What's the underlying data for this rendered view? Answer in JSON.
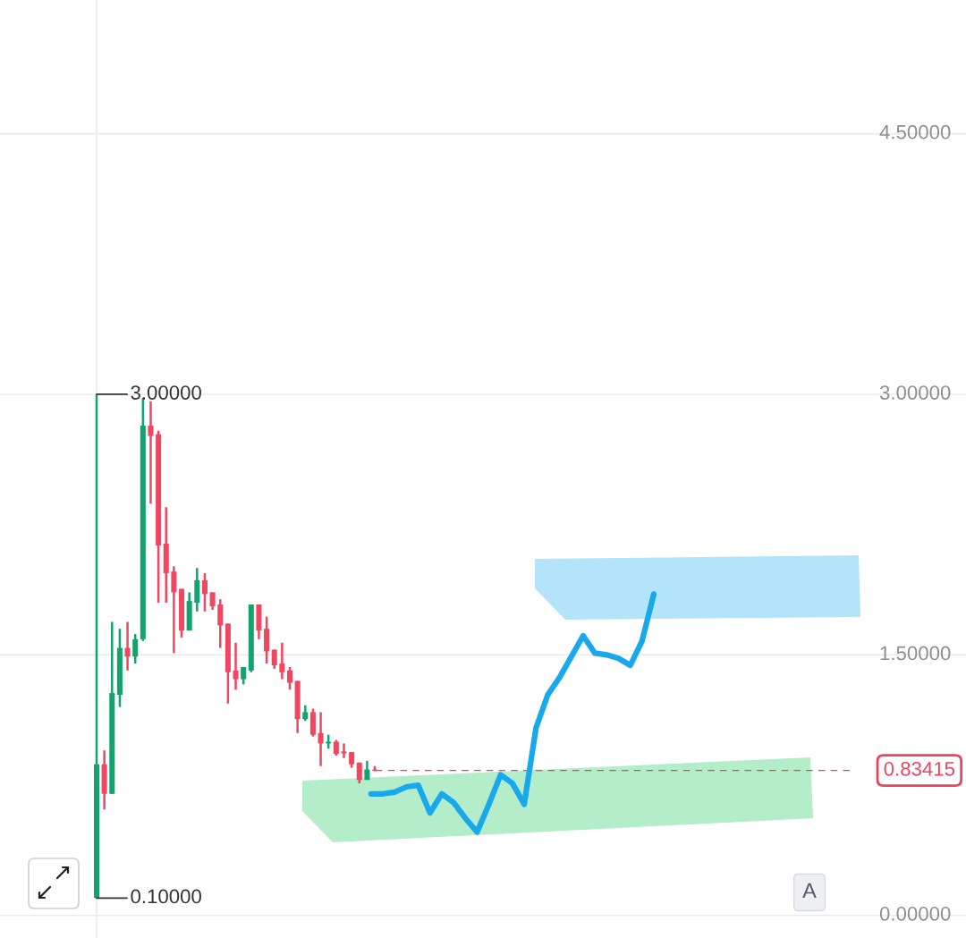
{
  "chart_data": [
    {
      "type": "candlestick",
      "categories": [
        null,
        null,
        null,
        null,
        null,
        null,
        null,
        null,
        null,
        null,
        null,
        null,
        null,
        null,
        null,
        null,
        null,
        null,
        null,
        null,
        null,
        null,
        null,
        null,
        null,
        null,
        null,
        null,
        null,
        null,
        null,
        null,
        null,
        null,
        null,
        null,
        null,
        null,
        null,
        null,
        null,
        null,
        null,
        null,
        null,
        null,
        null,
        null,
        null,
        null,
        null,
        null,
        null,
        null,
        null,
        null,
        null,
        null,
        null,
        null,
        null,
        null,
        null,
        null,
        null,
        null,
        null,
        null,
        null,
        null,
        null,
        null,
        null,
        null,
        null,
        null,
        null,
        null,
        null,
        null,
        null,
        null,
        null,
        null,
        null,
        null,
        null,
        null,
        null,
        null,
        null,
        null,
        null,
        null,
        null,
        null,
        null,
        null,
        null,
        null,
        null,
        null,
        null,
        null,
        null,
        null,
        null,
        null,
        null,
        null,
        null,
        null,
        null,
        null,
        null,
        null,
        null,
        null,
        null,
        null,
        null,
        null,
        null,
        null,
        null
      ],
      "ohlc": [
        null,
        null,
        null,
        null,
        null,
        null,
        null,
        null,
        null,
        null,
        null,
        null,
        [
          0.1,
          3.0,
          0.1,
          0.87
        ],
        [
          0.87,
          0.95,
          0.61,
          0.7
        ],
        [
          0.7,
          1.69,
          0.7,
          1.28
        ],
        [
          1.27,
          1.65,
          1.2,
          1.54
        ],
        [
          1.54,
          1.69,
          1.41,
          1.49
        ],
        [
          1.49,
          1.62,
          1.45,
          1.59
        ],
        [
          1.59,
          2.98,
          1.58,
          2.82
        ],
        [
          2.82,
          2.96,
          2.37,
          2.76
        ],
        [
          2.77,
          2.79,
          1.8,
          2.13
        ],
        [
          2.14,
          2.35,
          1.8,
          1.97
        ],
        [
          1.98,
          2.01,
          1.51,
          1.86
        ],
        [
          1.88,
          1.88,
          1.6,
          1.64
        ],
        [
          1.64,
          1.86,
          1.64,
          1.81
        ],
        [
          1.8,
          2.0,
          1.75,
          1.93
        ],
        [
          1.93,
          1.97,
          1.75,
          1.85
        ],
        [
          1.86,
          1.86,
          1.76,
          1.78
        ],
        [
          1.79,
          1.82,
          1.54,
          1.67
        ],
        [
          1.68,
          1.68,
          1.22,
          1.4
        ],
        [
          1.41,
          1.57,
          1.3,
          1.36
        ],
        [
          1.36,
          1.43,
          1.33,
          1.43
        ],
        [
          1.41,
          1.79,
          1.4,
          1.79
        ],
        [
          1.79,
          1.79,
          1.59,
          1.64
        ],
        [
          1.65,
          1.72,
          1.45,
          1.52
        ],
        [
          1.53,
          1.53,
          1.42,
          1.44
        ],
        [
          1.45,
          1.57,
          1.36,
          1.4
        ],
        [
          1.41,
          1.43,
          1.3,
          1.34
        ],
        [
          1.35,
          1.35,
          1.05,
          1.13
        ],
        [
          1.13,
          1.21,
          1.12,
          1.17
        ],
        [
          1.17,
          1.19,
          1.03,
          1.04
        ],
        [
          1.05,
          1.17,
          0.86,
          0.99
        ],
        [
          0.99,
          1.04,
          0.96,
          1.0
        ],
        [
          1.0,
          1.01,
          0.92,
          0.93
        ],
        [
          0.944,
          0.99,
          0.906,
          0.933
        ],
        [
          0.94,
          0.94,
          0.85,
          0.87
        ],
        [
          0.88,
          0.88,
          0.76,
          0.78
        ],
        [
          0.78,
          0.89,
          0.78,
          0.84
        ],
        [
          0.84,
          0.86,
          0.83,
          0.834
        ],
        null,
        null,
        null,
        null,
        null,
        null,
        null,
        null,
        null,
        null,
        null,
        null,
        null,
        null,
        null,
        null,
        null,
        null,
        null,
        null,
        null,
        null,
        null,
        null,
        null,
        null,
        null,
        null,
        null,
        null,
        null,
        null,
        null,
        null,
        null,
        null,
        null,
        null,
        null,
        null,
        null,
        null,
        null,
        null,
        null,
        null,
        null,
        null,
        null,
        null,
        null,
        null,
        null,
        null,
        null,
        null,
        null,
        null,
        null,
        null,
        null,
        null,
        null,
        null,
        null,
        null,
        null,
        null,
        null,
        null,
        null,
        null,
        null,
        null,
        null,
        null
      ],
      "colors": [
        null,
        null,
        null,
        null,
        null,
        null,
        null,
        null,
        null,
        null,
        null,
        null,
        "#13a36e",
        "#f0465f",
        "#13a36e",
        "#13a36e",
        "#f0465f",
        "#13a36e",
        "#13a36e",
        "#f0465f",
        "#f0465f",
        "#f0465f",
        "#f0465f",
        "#f0465f",
        "#13a36e",
        "#13a36e",
        "#f0465f",
        "#f0465f",
        "#f0465f",
        "#f0465f",
        "#f0465f",
        "#13a36e",
        "#13a36e",
        "#f0465f",
        "#f0465f",
        "#f0465f",
        "#f0465f",
        "#f0465f",
        "#f0465f",
        "#13a36e",
        "#f0465f",
        "#f0465f",
        "#13a36e",
        "#f0465f",
        "#f0465f",
        "#f0465f",
        "#f0465f",
        "#13a36e",
        "#f0465f",
        null,
        null,
        null,
        null,
        null,
        null,
        null,
        null,
        null,
        null,
        null,
        null,
        null,
        null,
        null,
        null,
        null,
        null,
        null,
        null,
        null,
        null,
        null,
        null,
        null,
        null,
        null,
        null,
        null,
        null,
        null,
        null,
        null,
        null,
        null,
        null,
        null,
        null,
        null,
        null,
        null,
        null,
        null,
        null,
        null,
        null,
        null,
        null,
        null,
        null,
        null,
        null,
        null,
        null,
        null,
        null,
        null,
        null,
        null,
        null,
        null,
        null,
        null,
        null,
        null,
        null,
        null,
        null,
        null,
        null,
        null,
        null,
        null,
        null,
        null,
        null
      ],
      "ref_lines": [
        {
          "axis": "y",
          "value": 0.83415,
          "label": "0.83415",
          "color": "#e8455e",
          "line_style": "dashed"
        }
      ],
      "annotations": [
        "3.00000",
        "0.10000",
        "A"
      ],
      "ylim": [
        -0.13,
        5.27
      ],
      "yticks": [
        {
          "value": 0,
          "label": "0.00000"
        },
        {
          "value": 1.5,
          "label": "1.50000"
        },
        {
          "value": 3.0,
          "label": "3.00000"
        },
        {
          "value": 4.5,
          "label": "4.50000"
        }
      ],
      "tick_labels": "y",
      "grid": true,
      "legend": false
    },
    {
      "type": "line",
      "categories": [
        null,
        null,
        null,
        null,
        null,
        null,
        null,
        null,
        null,
        null,
        null,
        null,
        null,
        null,
        null,
        null,
        null,
        null,
        null,
        null,
        null,
        null,
        null,
        null,
        null,
        null,
        null,
        null,
        null,
        null,
        null,
        null,
        null,
        null,
        null,
        null,
        null,
        null,
        null,
        null,
        null,
        null,
        null,
        null,
        null,
        null,
        null,
        null,
        null,
        null,
        null,
        null,
        null,
        null,
        null,
        null,
        null,
        null,
        null,
        null,
        null,
        null,
        null,
        null,
        null,
        null,
        null,
        null,
        null,
        null,
        null,
        null,
        null,
        null,
        null,
        null,
        null,
        null,
        null,
        null,
        null,
        null
      ],
      "series": [
        {
          "color": "#18a9ec",
          "values": [
            null,
            null,
            null,
            null,
            null,
            null,
            null,
            null,
            null,
            null,
            null,
            null,
            null,
            null,
            null,
            null,
            null,
            null,
            null,
            null,
            null,
            null,
            null,
            null,
            null,
            null,
            null,
            null,
            null,
            null,
            null,
            0.7,
            0.7,
            0.71,
            0.74,
            0.75,
            0.59,
            0.7,
            0.65,
            0.56,
            0.48,
            0.64,
            0.81,
            0.76,
            0.64,
            1.08,
            1.27,
            1.37,
            1.49,
            1.61,
            1.51,
            1.5,
            1.48,
            1.44,
            1.58,
            1.85,
            null,
            null,
            null,
            null,
            null,
            null,
            null,
            null,
            null,
            null,
            null,
            null,
            null,
            null,
            null,
            null,
            null,
            null,
            null,
            null,
            null,
            null,
            null,
            null,
            null,
            null
          ]
        }
      ],
      "ylim": [
        -0.13,
        5.27
      ],
      "tick_labels": false,
      "legend": false
    }
  ]
}
